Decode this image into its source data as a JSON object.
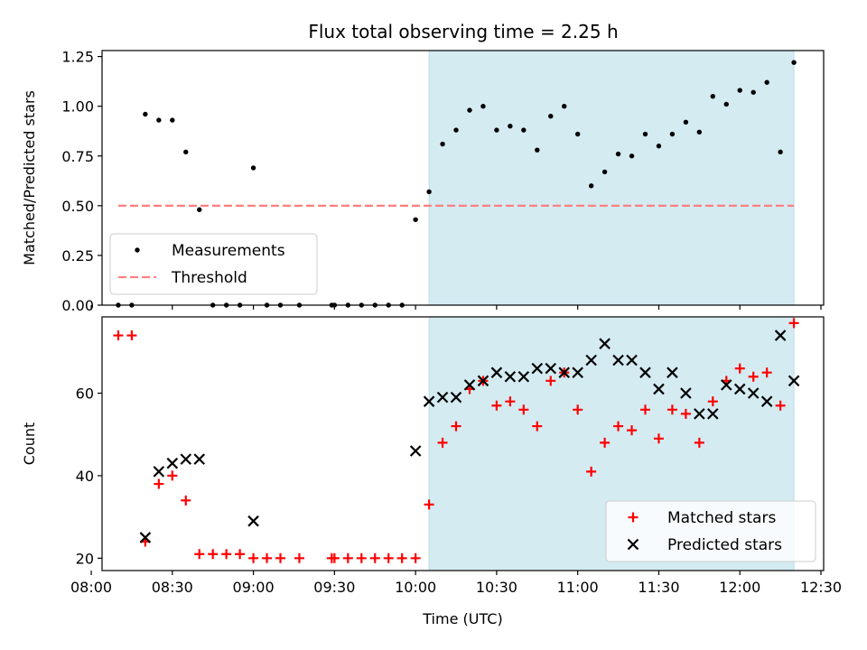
{
  "chart_data": [
    {
      "type": "scatter",
      "title": "Flux total observing time = 2.25 h",
      "ylabel": "Matched/Predicted stars",
      "xlabel": "",
      "xlim": [
        "08:04",
        "12:31"
      ],
      "ylim": [
        0,
        1.28
      ],
      "yticks": [
        "0.00",
        "0.25",
        "0.50",
        "0.75",
        "1.00",
        "1.25"
      ],
      "highlight_span": {
        "start": "10:05",
        "end": "12:20",
        "color": "#add8e6"
      },
      "legend": {
        "position": "lower-left",
        "entries": [
          "Measurements",
          "Threshold"
        ]
      },
      "threshold": {
        "name": "Threshold",
        "value": 0.5,
        "x": [
          "08:10",
          "12:20"
        ],
        "color": "#ff7f7f",
        "style": "dashed"
      },
      "series": [
        {
          "name": "Measurements",
          "color": "#000000",
          "marker": "dot",
          "x": [
            "08:10",
            "08:15",
            "08:20",
            "08:25",
            "08:30",
            "08:35",
            "08:40",
            "08:45",
            "08:50",
            "08:55",
            "09:00",
            "09:05",
            "09:10",
            "09:17",
            "09:29",
            "09:30",
            "09:35",
            "09:40",
            "09:45",
            "09:50",
            "09:55",
            "10:00",
            "10:05",
            "10:10",
            "10:15",
            "10:20",
            "10:25",
            "10:30",
            "10:35",
            "10:40",
            "10:45",
            "10:50",
            "10:55",
            "11:00",
            "11:05",
            "11:10",
            "11:15",
            "11:20",
            "11:25",
            "11:30",
            "11:35",
            "11:40",
            "11:45",
            "11:50",
            "11:55",
            "12:00",
            "12:05",
            "12:10",
            "12:15",
            "12:20"
          ],
          "y": [
            0,
            0,
            0.96,
            0.93,
            0.93,
            0.77,
            0.48,
            0,
            0,
            0,
            0.69,
            0,
            0,
            0,
            0,
            0,
            0,
            0,
            0,
            0,
            0,
            0.43,
            0.57,
            0.81,
            0.88,
            0.98,
            1.0,
            0.88,
            0.9,
            0.88,
            0.78,
            0.95,
            1.0,
            0.86,
            0.6,
            0.67,
            0.76,
            0.75,
            0.86,
            0.8,
            0.86,
            0.92,
            0.87,
            1.05,
            1.01,
            1.08,
            1.07,
            1.12,
            0.77,
            1.22
          ]
        }
      ]
    },
    {
      "type": "scatter",
      "title": "",
      "ylabel": "Count",
      "xlabel": "Time (UTC)",
      "xlim": [
        "08:04",
        "12:31"
      ],
      "ylim": [
        17,
        78.5
      ],
      "xticks": [
        "08:00",
        "08:30",
        "09:00",
        "09:30",
        "10:00",
        "10:30",
        "11:00",
        "11:30",
        "12:00",
        "12:30"
      ],
      "yticks": [
        "20",
        "40",
        "60"
      ],
      "highlight_span": {
        "start": "10:05",
        "end": "12:20",
        "color": "#add8e6"
      },
      "legend": {
        "position": "lower-right",
        "entries": [
          "Matched stars",
          "Predicted stars"
        ]
      },
      "series": [
        {
          "name": "Matched stars",
          "color": "#ff0000",
          "marker": "plus",
          "x": [
            "08:10",
            "08:15",
            "08:20",
            "08:25",
            "08:30",
            "08:35",
            "08:40",
            "08:45",
            "08:50",
            "08:55",
            "09:00",
            "09:05",
            "09:10",
            "09:17",
            "09:29",
            "09:30",
            "09:35",
            "09:40",
            "09:45",
            "09:50",
            "09:55",
            "10:00",
            "10:05",
            "10:10",
            "10:15",
            "10:20",
            "10:25",
            "10:30",
            "10:35",
            "10:40",
            "10:45",
            "10:50",
            "10:55",
            "11:00",
            "11:05",
            "11:10",
            "11:15",
            "11:20",
            "11:25",
            "11:30",
            "11:35",
            "11:40",
            "11:45",
            "11:50",
            "11:55",
            "12:00",
            "12:05",
            "12:10",
            "12:15",
            "12:20"
          ],
          "y": [
            74,
            74,
            24,
            38,
            40,
            34,
            21,
            21,
            21,
            21,
            20,
            20,
            20,
            20,
            20,
            20,
            20,
            20,
            20,
            20,
            20,
            20,
            33,
            48,
            52,
            61,
            63,
            57,
            58,
            56,
            52,
            63,
            65,
            56,
            41,
            48,
            52,
            51,
            56,
            49,
            56,
            55,
            48,
            58,
            63,
            66,
            64,
            65,
            57,
            77
          ]
        },
        {
          "name": "Predicted stars",
          "color": "#000000",
          "marker": "x",
          "x": [
            "08:20",
            "08:25",
            "08:30",
            "08:35",
            "08:40",
            "09:00",
            "10:00",
            "10:05",
            "10:10",
            "10:15",
            "10:20",
            "10:25",
            "10:30",
            "10:35",
            "10:40",
            "10:45",
            "10:50",
            "10:55",
            "11:00",
            "11:05",
            "11:10",
            "11:15",
            "11:20",
            "11:25",
            "11:30",
            "11:35",
            "11:40",
            "11:45",
            "11:50",
            "11:55",
            "12:00",
            "12:05",
            "12:10",
            "12:15",
            "12:20"
          ],
          "y": [
            25,
            41,
            43,
            44,
            44,
            29,
            46,
            58,
            59,
            59,
            62,
            63,
            65,
            64,
            64,
            66,
            66,
            65,
            65,
            68,
            72,
            68,
            68,
            65,
            61,
            65,
            60,
            55,
            55,
            62,
            61,
            60,
            58,
            74,
            63
          ]
        }
      ]
    }
  ]
}
